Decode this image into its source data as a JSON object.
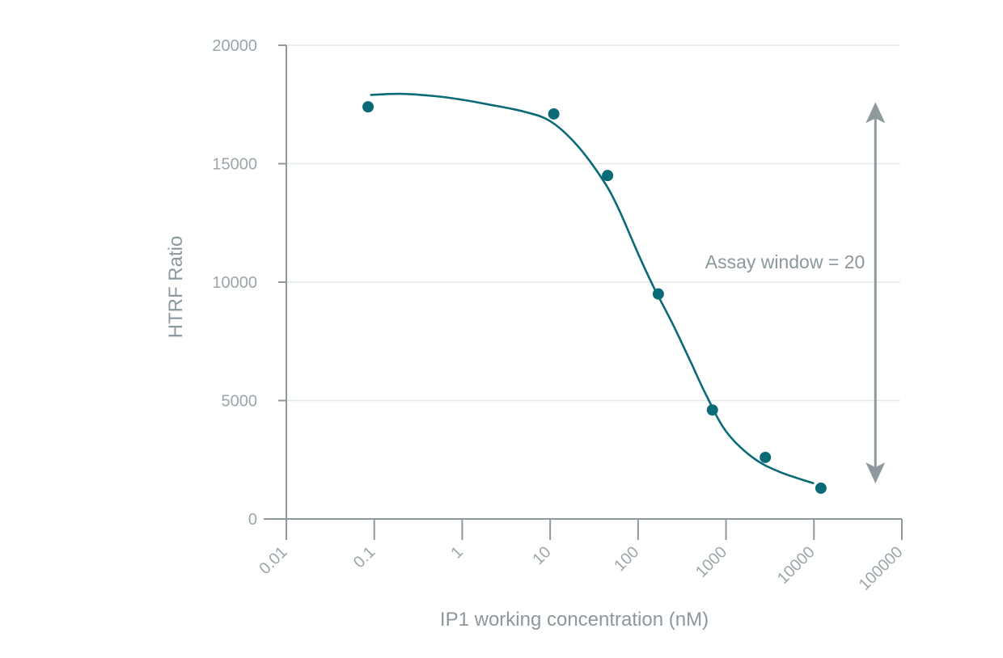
{
  "chart_data": {
    "type": "scatter",
    "xlabel": "IP1 working concentration (nM)",
    "ylabel": "HTRF Ratio",
    "x_scale": "log",
    "xlim": [
      0.01,
      100000
    ],
    "ylim": [
      0,
      20000
    ],
    "x_ticks": [
      0.01,
      0.1,
      1,
      10,
      100,
      1000,
      10000,
      100000
    ],
    "x_tick_labels": [
      "0.01",
      "0.1",
      "1",
      "10",
      "100",
      "1000",
      "10000",
      "100000"
    ],
    "y_ticks": [
      0,
      5000,
      10000,
      15000,
      20000
    ],
    "y_tick_labels": [
      "0",
      "5000",
      "10000",
      "15000",
      "20000"
    ],
    "grid": "horizontal",
    "series": [
      {
        "x": [
          0.085,
          11,
          45,
          170,
          700,
          2800,
          12000
        ],
        "y": [
          17400,
          17100,
          14500,
          9500,
          4600,
          2600,
          1300
        ],
        "color": "#0b6a78"
      }
    ],
    "fit_curve": {
      "x": [
        0.09,
        0.2,
        0.5,
        1,
        2,
        5,
        10,
        20,
        40,
        60,
        100,
        150,
        250,
        400,
        600,
        1000,
        2000,
        4000,
        10000
      ],
      "y": [
        17900,
        17950,
        17850,
        17700,
        17500,
        17200,
        16800,
        15800,
        14300,
        13100,
        11200,
        9800,
        8200,
        6600,
        5200,
        3700,
        2600,
        2000,
        1500
      ],
      "color": "#0b6a78"
    },
    "annotation": {
      "text": "Assay window = 20",
      "arrow_from": 1500,
      "arrow_to": 17600,
      "x": 50000,
      "color": "#8e999d"
    }
  }
}
